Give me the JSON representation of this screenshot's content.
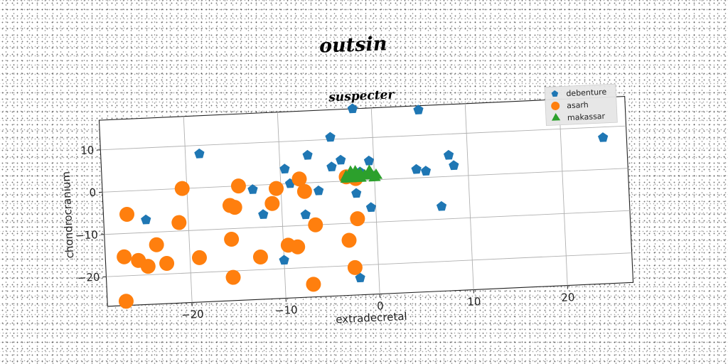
{
  "figure_title": "outsin",
  "chart_data": {
    "type": "scatter",
    "title": "suspecter",
    "xlabel": "extradecretal",
    "ylabel": "chondrocranium",
    "xlim": [
      -29,
      27
    ],
    "ylim": [
      -27,
      17
    ],
    "xticks": [
      -20,
      -10,
      0,
      10,
      20
    ],
    "yticks": [
      10,
      0,
      -10,
      -20
    ],
    "xtick_labels": [
      "−20",
      "−10",
      "0",
      "10",
      "20"
    ],
    "ytick_labels": [
      "10",
      "0",
      "−10",
      "−20"
    ],
    "grid": true,
    "legend_position": "top-right",
    "series": [
      {
        "name": "debenture",
        "marker": "pentagon",
        "color": "#1f77b4",
        "points": [
          [
            -2,
            17
          ],
          [
            5,
            16
          ],
          [
            -4.5,
            10.5
          ],
          [
            -18.5,
            8
          ],
          [
            -7,
            6.5
          ],
          [
            -3.5,
            5
          ],
          [
            -4.5,
            3.5
          ],
          [
            -9.5,
            3.5
          ],
          [
            -0.5,
            4.5
          ],
          [
            -1.5,
            2
          ],
          [
            -0.5,
            1.5
          ],
          [
            -9,
            0
          ],
          [
            -13,
            -1
          ],
          [
            -6,
            -2
          ],
          [
            -2,
            -3
          ],
          [
            4.5,
            2
          ],
          [
            5.5,
            1.5
          ],
          [
            8,
            5
          ],
          [
            8.5,
            2.5
          ],
          [
            24.5,
            7.5
          ],
          [
            7,
            -7
          ],
          [
            -0.5,
            -6.5
          ],
          [
            -12,
            -7
          ],
          [
            -7.5,
            -7.5
          ],
          [
            -24.5,
            -7
          ],
          [
            -10,
            -18
          ],
          [
            -2,
            -23
          ]
        ]
      },
      {
        "name": "asarh",
        "marker": "circle",
        "color": "#ff7f0e",
        "points": [
          [
            -20.5,
            0
          ],
          [
            -14.5,
            0
          ],
          [
            -10.5,
            -1
          ],
          [
            -8,
            1
          ],
          [
            -7.5,
            -2
          ],
          [
            -15.5,
            -4.5
          ],
          [
            -15,
            -5
          ],
          [
            -11,
            -4.5
          ],
          [
            -26.5,
            -5.5
          ],
          [
            -21,
            -8
          ],
          [
            -6.5,
            -10
          ],
          [
            -2,
            -9
          ],
          [
            -23.5,
            -13
          ],
          [
            -15.5,
            -12.5
          ],
          [
            -9.5,
            -14.5
          ],
          [
            -8.5,
            -15
          ],
          [
            -3,
            -14
          ],
          [
            -27,
            -15.5
          ],
          [
            -25.5,
            -16.5
          ],
          [
            -24.5,
            -18
          ],
          [
            -22.5,
            -17.5
          ],
          [
            -19,
            -16.5
          ],
          [
            -12.5,
            -17
          ],
          [
            -15.5,
            -21.5
          ],
          [
            -2.5,
            -20.5
          ],
          [
            -7,
            -24
          ],
          [
            -27,
            -26
          ],
          [
            -3,
            1
          ],
          [
            -2,
            0.5
          ]
        ]
      },
      {
        "name": "makassar",
        "marker": "triangle",
        "color": "#2ca02c",
        "points": [
          [
            -3,
            1
          ],
          [
            -2.5,
            0.5
          ],
          [
            -2,
            1
          ],
          [
            -1.5,
            0.5
          ],
          [
            -1,
            1
          ],
          [
            -0.5,
            1.5
          ],
          [
            0,
            0.5
          ],
          [
            -2.5,
            2
          ],
          [
            -1.5,
            1.5
          ],
          [
            -0.5,
            2
          ],
          [
            0.2,
            1
          ],
          [
            -3,
            0.5
          ],
          [
            -2,
            2
          ]
        ]
      }
    ]
  }
}
